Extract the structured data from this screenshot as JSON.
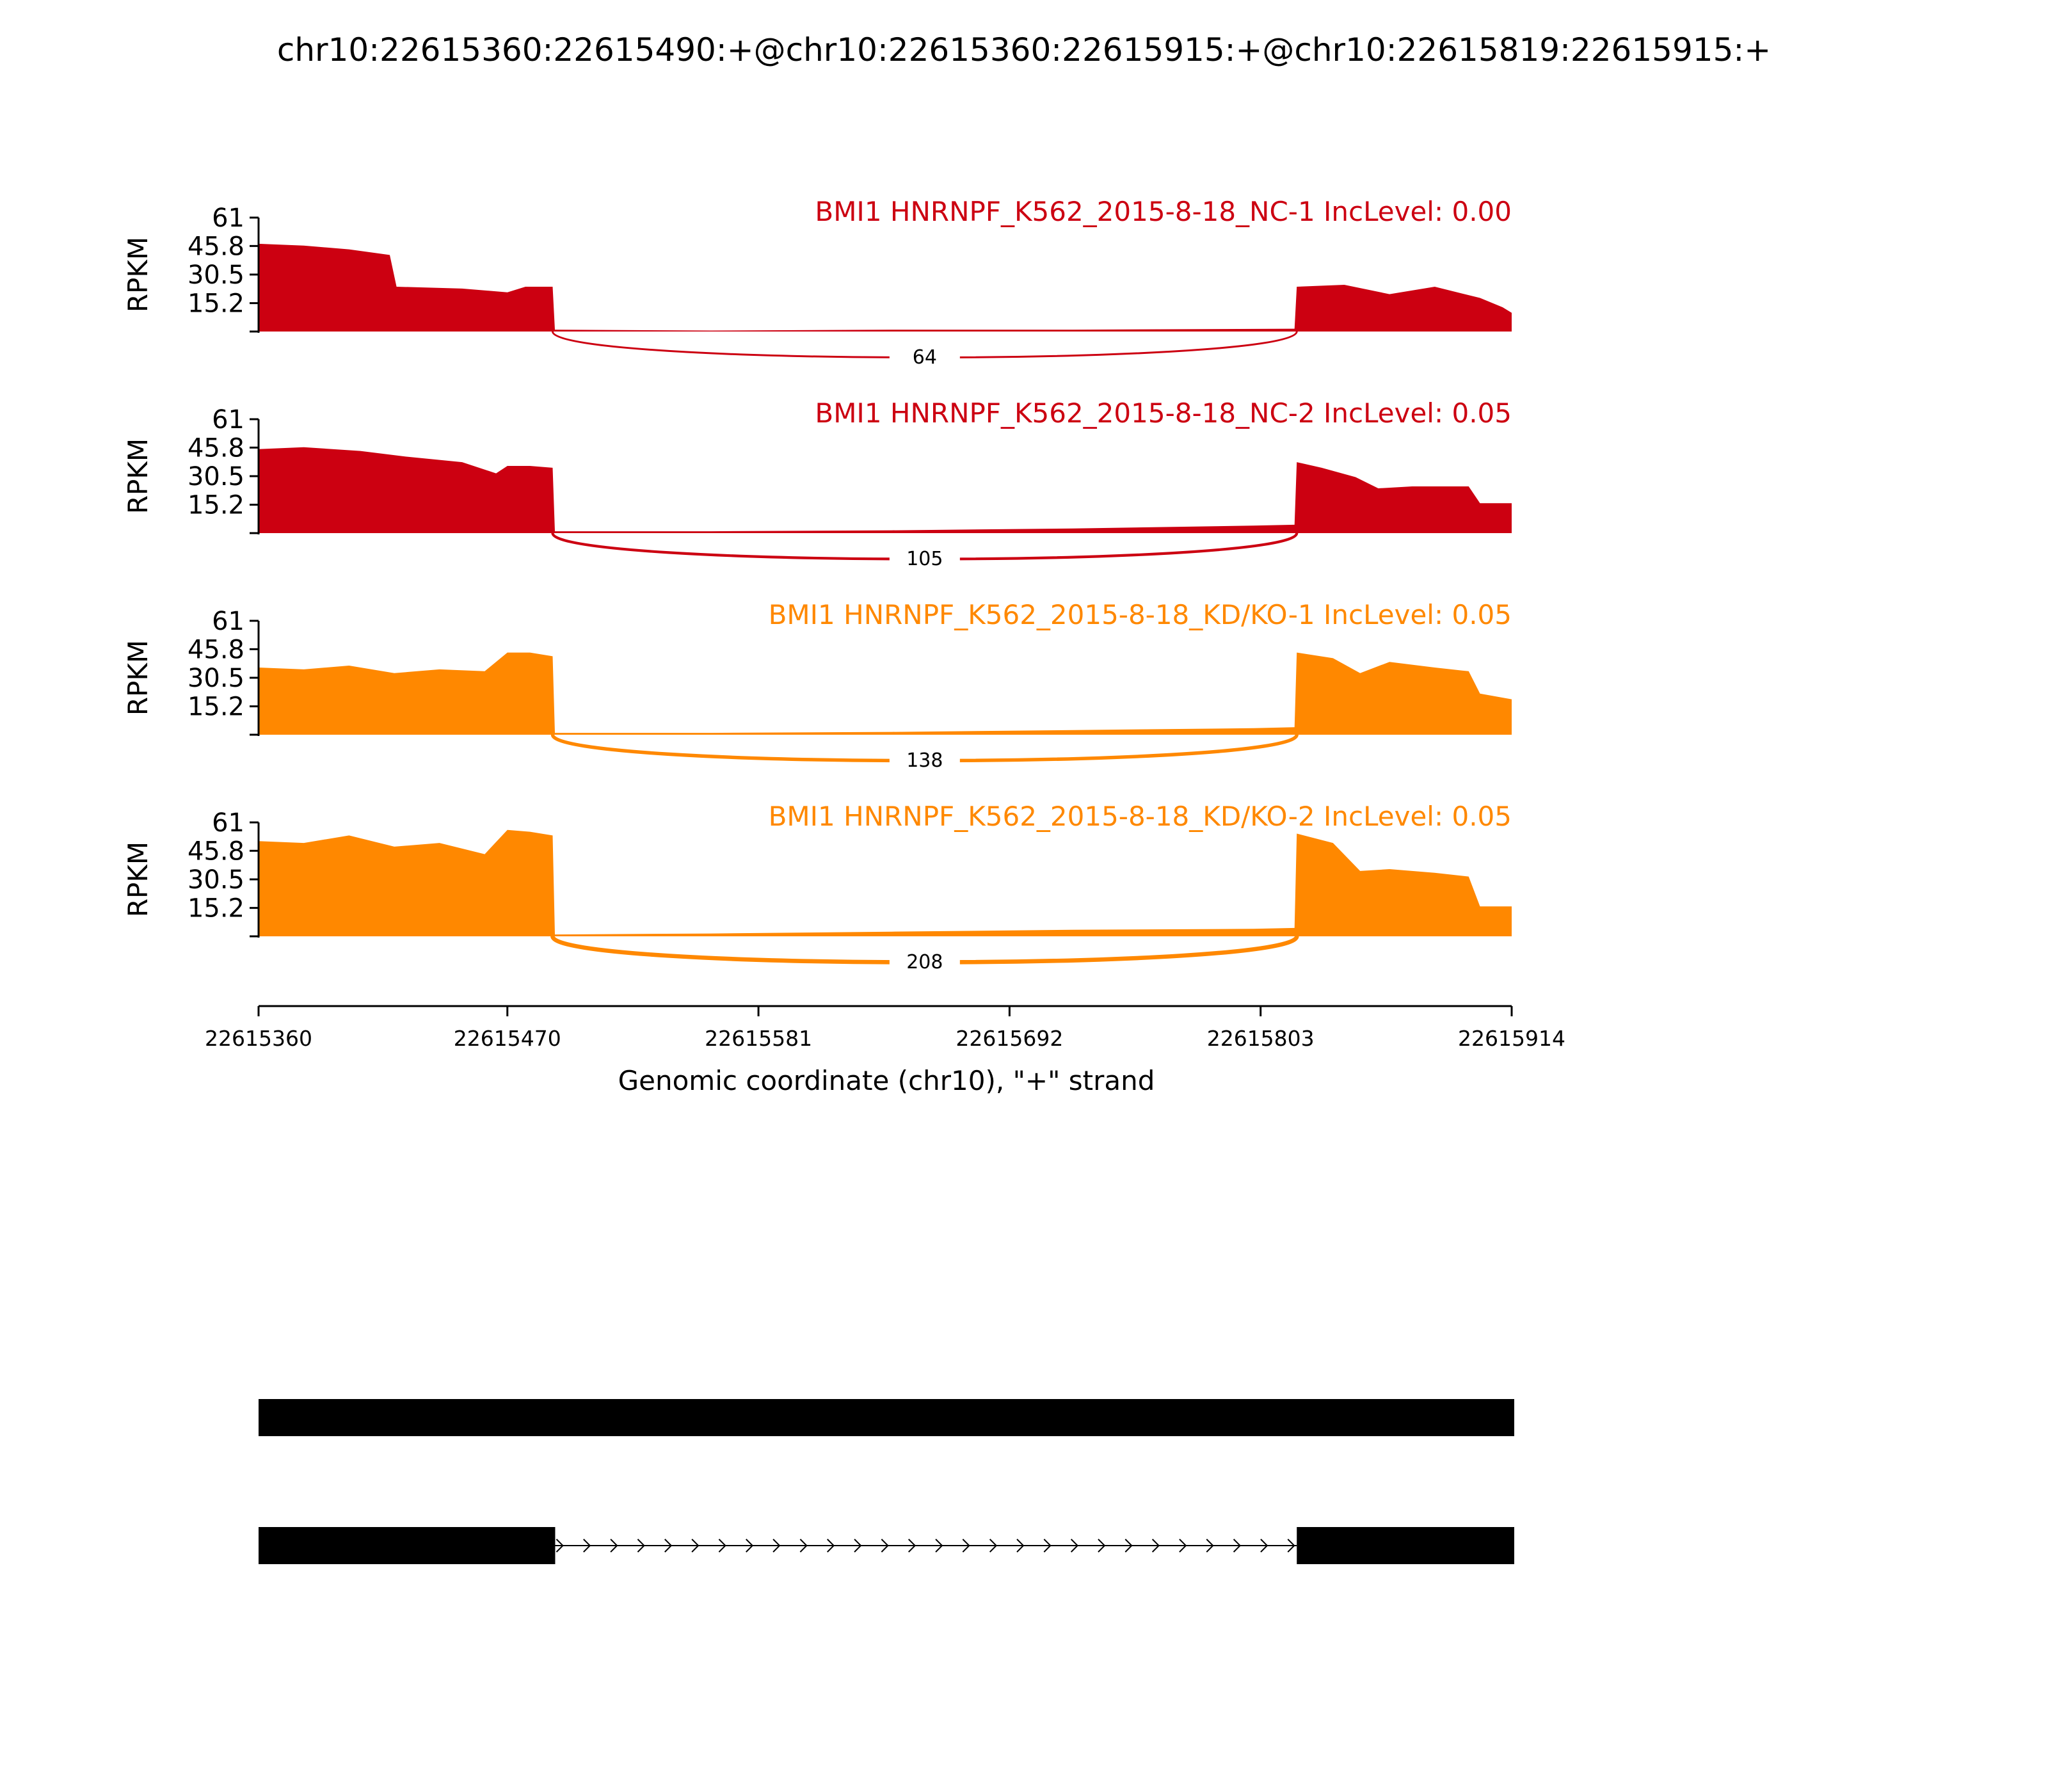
{
  "chart_data": {
    "type": "area",
    "title": "chr10:22615360:22615490:+@chr10:22615360:22615915:+@chr10:22615819:22615915:+",
    "xlabel": "Genomic coordinate (chr10), \"+\" strand",
    "ylabel": "RPKM",
    "xlim": [
      22615360,
      22615914
    ],
    "x_ticks": [
      "22615360",
      "22615470",
      "22615581",
      "22615692",
      "22615803",
      "22615914"
    ],
    "ylim": [
      0,
      61
    ],
    "y_ticks": [
      "15.2",
      "30.5",
      "45.8",
      "61"
    ],
    "junction_span": [
      22615490,
      22615819
    ],
    "grid": false,
    "tracks": [
      {
        "label": "BMI1 HNRNPF_K562_2015-8-18_NC-1 IncLevel: 0.00",
        "color": "#cc0011",
        "junction_count": "64",
        "x": [
          22615360,
          22615380,
          22615400,
          22615418,
          22615421,
          22615450,
          22615470,
          22615478,
          22615482,
          22615490,
          22615491,
          22615560,
          22615640,
          22615720,
          22615818,
          22615819,
          22615840,
          22615860,
          22615880,
          22615900,
          22615910,
          22615914
        ],
        "values": [
          47,
          46,
          44,
          41,
          24,
          23,
          21,
          24,
          24,
          24,
          1,
          0.5,
          1,
          1,
          1.5,
          24,
          25,
          20,
          24,
          18,
          13,
          10
        ]
      },
      {
        "label": "BMI1 HNRNPF_K562_2015-8-18_NC-2 IncLevel: 0.05",
        "color": "#cc0011",
        "junction_count": "105",
        "x": [
          22615360,
          22615380,
          22615405,
          22615425,
          22615450,
          22615465,
          22615470,
          22615480,
          22615490,
          22615491,
          22615560,
          22615640,
          22615720,
          22615800,
          22615818,
          22615819,
          22615830,
          22615845,
          22615855,
          22615870,
          22615895,
          22615900,
          22615914
        ],
        "values": [
          45,
          46,
          44,
          41,
          38,
          32,
          36,
          36,
          35,
          1,
          1,
          1.5,
          2.5,
          4,
          4.5,
          38,
          35,
          30,
          24,
          25,
          25,
          16,
          16
        ]
      },
      {
        "label": "BMI1 HNRNPF_K562_2015-8-18_KD/KO-1 IncLevel: 0.05",
        "color": "#ff8800",
        "junction_count": "138",
        "x": [
          22615360,
          22615380,
          22615400,
          22615420,
          22615440,
          22615460,
          22615470,
          22615480,
          22615490,
          22615491,
          22615560,
          22615640,
          22615720,
          22615800,
          22615818,
          22615819,
          22615835,
          22615847,
          22615860,
          22615880,
          22615895,
          22615900,
          22615914
        ],
        "values": [
          36,
          35,
          37,
          33,
          35,
          34,
          44,
          44,
          42,
          1,
          1,
          1.5,
          2.5,
          3.5,
          4,
          44,
          41,
          33,
          39,
          36,
          34,
          22,
          19
        ]
      },
      {
        "label": "BMI1 HNRNPF_K562_2015-8-18_KD/KO-2 IncLevel: 0.05",
        "color": "#ff8800",
        "junction_count": "208",
        "x": [
          22615360,
          22615380,
          22615400,
          22615420,
          22615440,
          22615460,
          22615470,
          22615480,
          22615490,
          22615491,
          22615560,
          22615640,
          22615720,
          22615800,
          22615818,
          22615819,
          22615835,
          22615847,
          22615860,
          22615880,
          22615895,
          22615900,
          22615914
        ],
        "values": [
          51,
          50,
          54,
          48,
          50,
          44,
          57,
          56,
          54,
          1,
          1.5,
          2.5,
          3.5,
          4,
          4.5,
          55,
          50,
          35,
          36,
          34,
          32,
          16,
          16
        ]
      }
    ],
    "isoforms": [
      {
        "exons": [
          [
            22615360,
            22615914
          ]
        ]
      },
      {
        "exons": [
          [
            22615360,
            22615490
          ],
          [
            22615819,
            22615914
          ]
        ]
      }
    ]
  }
}
